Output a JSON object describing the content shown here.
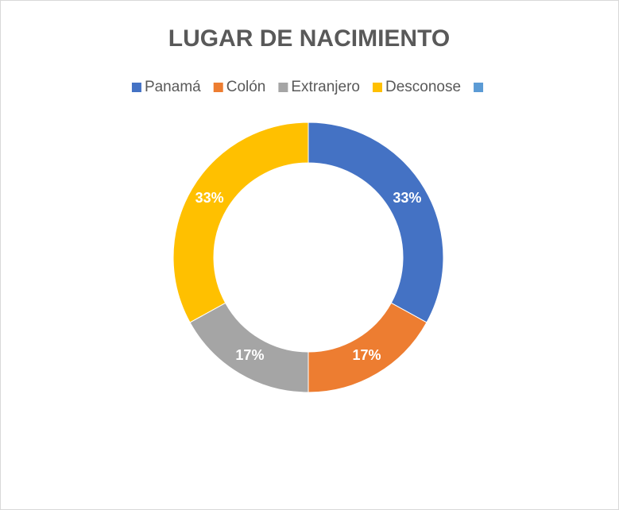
{
  "chart_data": {
    "type": "doughnut",
    "title": "LUGAR DE NACIMIENTO",
    "categories": [
      "Panamá",
      "Colón",
      "Extranjero",
      "Desconose",
      null
    ],
    "values": [
      33,
      17,
      17,
      33,
      0
    ],
    "value_labels": [
      "33%",
      "17%",
      "17%",
      "33%",
      null
    ],
    "colors": [
      "#4472c4",
      "#ed7d31",
      "#a5a5a5",
      "#ffc000",
      "#5b9bd5"
    ],
    "legend": "top"
  }
}
